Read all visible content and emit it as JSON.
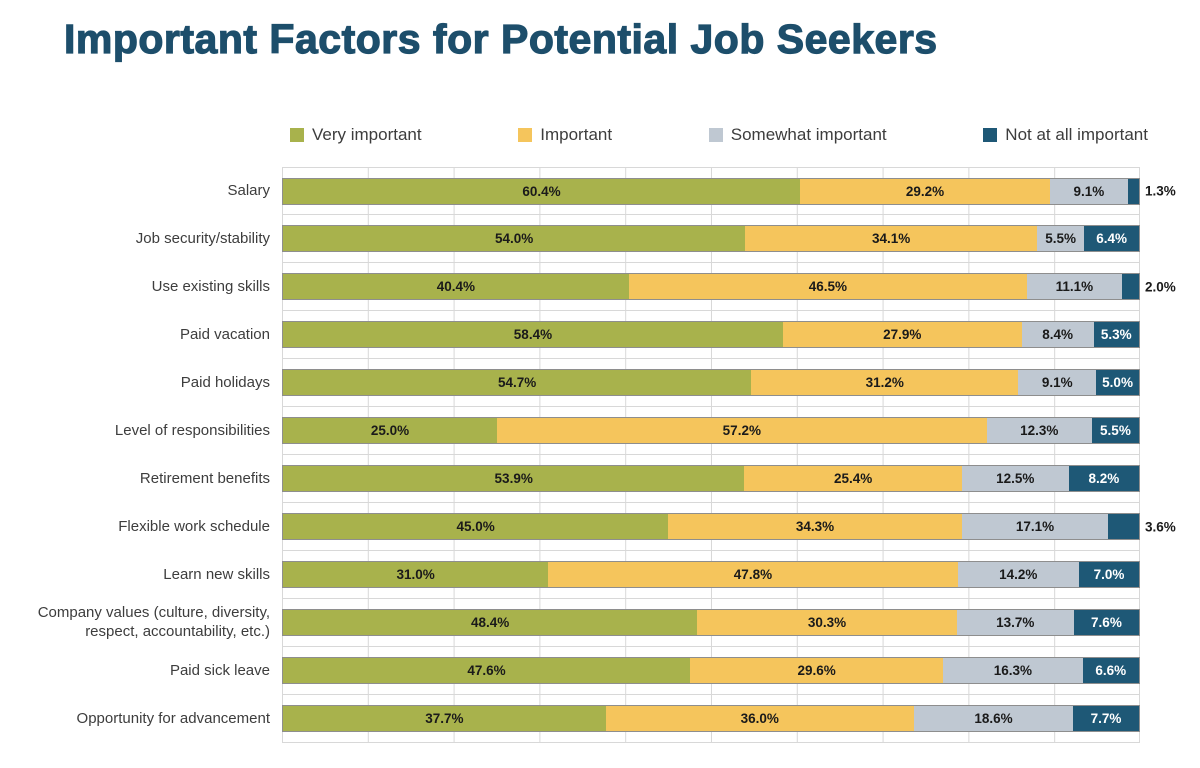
{
  "title": "Important Factors for Potential Job Seekers",
  "colors": {
    "very_important": "#a8b24c",
    "important": "#f5c55c",
    "somewhat_important": "#bfc8d2",
    "not_at_all_important": "#1e5876",
    "title_text": "#1d4e6b",
    "grid": "#d8d8d8",
    "label_dark": "#1a1a1a",
    "label_light": "#ffffff"
  },
  "chart_data": {
    "type": "bar",
    "orientation": "horizontal",
    "stacked": true,
    "value_unit": "%",
    "xlim": [
      0,
      100
    ],
    "grid": "on",
    "legend_position": "top",
    "title": "Important Factors for Potential Job Seekers",
    "categories": [
      "Salary",
      "Job security/stability",
      "Use existing skills",
      "Paid vacation",
      "Paid holidays",
      "Level of responsibilities",
      "Retirement benefits",
      "Flexible work schedule",
      "Learn new skills",
      "Company values (culture, diversity, respect, accountability, etc.)",
      "Paid sick leave",
      "Opportunity for advancement"
    ],
    "series": [
      {
        "name": "Very important",
        "color_key": "very_important",
        "values": [
          60.4,
          54.0,
          40.4,
          58.4,
          54.7,
          25.0,
          53.9,
          45.0,
          31.0,
          48.4,
          47.6,
          37.7
        ]
      },
      {
        "name": "Important",
        "color_key": "important",
        "values": [
          29.2,
          34.1,
          46.5,
          27.9,
          31.2,
          57.2,
          25.4,
          34.3,
          47.8,
          30.3,
          29.6,
          36.0
        ]
      },
      {
        "name": "Somewhat important",
        "color_key": "somewhat_important",
        "values": [
          9.1,
          5.5,
          11.1,
          8.4,
          9.1,
          12.3,
          12.5,
          17.1,
          14.2,
          13.7,
          16.3,
          18.6
        ]
      },
      {
        "name": "Not at all important",
        "color_key": "not_at_all_important",
        "values": [
          1.3,
          6.4,
          2.0,
          5.3,
          5.0,
          5.5,
          8.2,
          3.6,
          7.0,
          7.6,
          6.6,
          7.7
        ]
      }
    ],
    "outside_label_threshold": 4.5
  }
}
